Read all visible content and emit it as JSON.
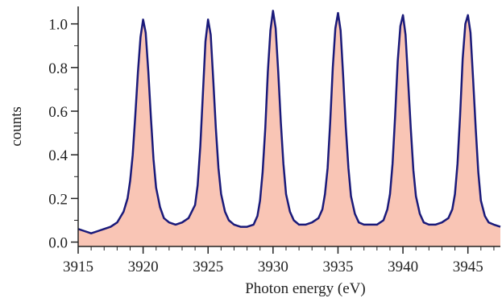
{
  "chart_data": {
    "type": "area",
    "xlabel": "Photon energy (eV)",
    "ylabel": "counts",
    "xlim": [
      3915,
      3947.5
    ],
    "ylim": [
      -0.02,
      1.08
    ],
    "x_ticks": [
      3915,
      3920,
      3925,
      3930,
      3935,
      3940,
      3945
    ],
    "x_tick_labels": [
      "3915",
      "3920",
      "3925",
      "3930",
      "3935",
      "3940",
      "3945"
    ],
    "y_ticks": [
      0.0,
      0.2,
      0.4,
      0.6,
      0.8,
      1.0
    ],
    "y_tick_labels": [
      "0.0",
      "0.2",
      "0.4",
      "0.6",
      "0.8",
      "1.0"
    ],
    "grid": false,
    "colors": {
      "line": "#1a1a7a",
      "fill": "#f9c5b5",
      "axis": "#222222"
    },
    "series": [
      {
        "x": [
          3915.0,
          3915.5,
          3916.0,
          3916.5,
          3917.0,
          3917.5,
          3918.0,
          3918.5,
          3918.8,
          3919.0,
          3919.2,
          3919.4,
          3919.6,
          3919.8,
          3920.0,
          3920.2,
          3920.4,
          3920.6,
          3920.8,
          3921.0,
          3921.3,
          3921.6,
          3922.0,
          3922.5,
          3923.0,
          3923.5,
          3924.0,
          3924.2,
          3924.4,
          3924.6,
          3924.8,
          3925.0,
          3925.2,
          3925.4,
          3925.6,
          3925.8,
          3926.0,
          3926.3,
          3926.6,
          3927.0,
          3927.5,
          3928.0,
          3928.5,
          3928.8,
          3929.0,
          3929.2,
          3929.4,
          3929.6,
          3929.8,
          3930.0,
          3930.2,
          3930.4,
          3930.6,
          3930.8,
          3931.0,
          3931.3,
          3931.6,
          3932.0,
          3932.5,
          3933.0,
          3933.5,
          3933.8,
          3934.0,
          3934.2,
          3934.4,
          3934.6,
          3934.8,
          3935.0,
          3935.2,
          3935.4,
          3935.6,
          3935.8,
          3936.0,
          3936.3,
          3936.6,
          3937.0,
          3937.5,
          3938.0,
          3938.5,
          3938.8,
          3939.0,
          3939.2,
          3939.4,
          3939.6,
          3939.8,
          3940.0,
          3940.2,
          3940.4,
          3940.6,
          3940.8,
          3941.0,
          3941.3,
          3941.6,
          3942.0,
          3942.5,
          3943.0,
          3943.5,
          3943.8,
          3944.0,
          3944.2,
          3944.4,
          3944.6,
          3944.8,
          3945.0,
          3945.2,
          3945.4,
          3945.6,
          3945.8,
          3946.0,
          3946.3,
          3946.6,
          3947.0,
          3947.5
        ],
        "y": [
          0.06,
          0.05,
          0.04,
          0.05,
          0.06,
          0.07,
          0.09,
          0.14,
          0.2,
          0.28,
          0.4,
          0.58,
          0.78,
          0.94,
          1.02,
          0.96,
          0.78,
          0.57,
          0.38,
          0.25,
          0.16,
          0.11,
          0.09,
          0.08,
          0.09,
          0.11,
          0.17,
          0.26,
          0.44,
          0.68,
          0.92,
          1.02,
          0.95,
          0.74,
          0.52,
          0.34,
          0.22,
          0.14,
          0.1,
          0.08,
          0.07,
          0.07,
          0.08,
          0.12,
          0.19,
          0.32,
          0.52,
          0.78,
          0.97,
          1.06,
          0.98,
          0.78,
          0.55,
          0.36,
          0.22,
          0.14,
          0.1,
          0.08,
          0.08,
          0.09,
          0.11,
          0.15,
          0.22,
          0.34,
          0.55,
          0.8,
          0.98,
          1.05,
          0.97,
          0.76,
          0.53,
          0.34,
          0.21,
          0.13,
          0.09,
          0.08,
          0.08,
          0.08,
          0.1,
          0.15,
          0.22,
          0.36,
          0.58,
          0.83,
          0.99,
          1.04,
          0.95,
          0.74,
          0.52,
          0.33,
          0.21,
          0.13,
          0.09,
          0.08,
          0.08,
          0.09,
          0.11,
          0.15,
          0.22,
          0.36,
          0.58,
          0.84,
          1.0,
          1.04,
          0.96,
          0.75,
          0.52,
          0.32,
          0.19,
          0.12,
          0.09,
          0.08,
          0.07
        ]
      }
    ]
  }
}
